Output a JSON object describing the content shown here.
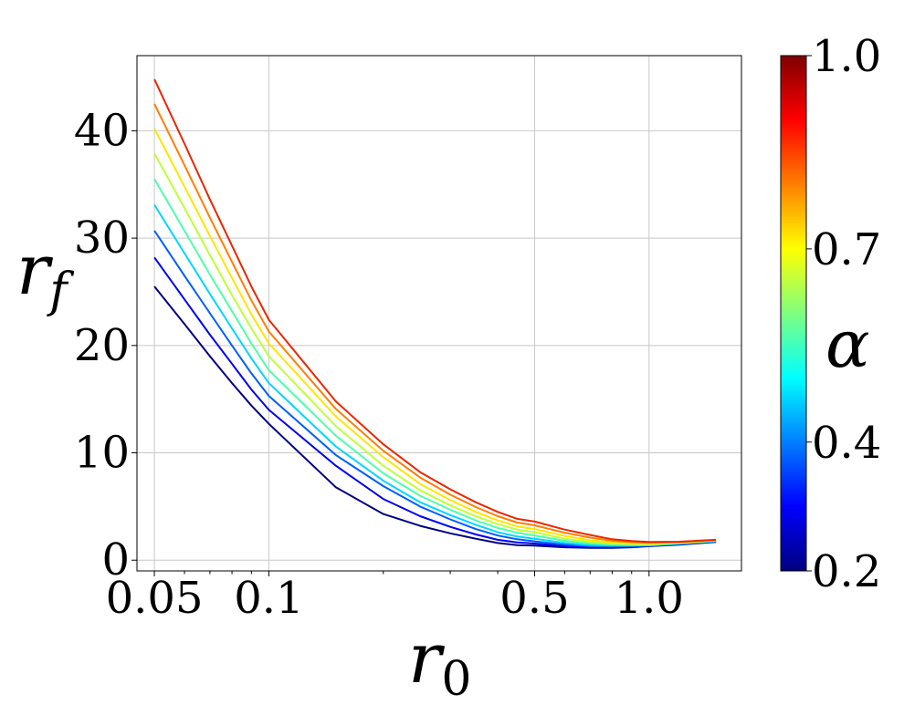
{
  "chart_data": {
    "type": "line",
    "title": "",
    "xlabel_main": "r",
    "xlabel_sub": "0",
    "ylabel_main": "r",
    "ylabel_sub": "f",
    "x_scale": "log",
    "xlim": [
      0.045,
      1.75
    ],
    "ylim": [
      -1,
      47
    ],
    "x_ticks": [
      0.05,
      0.1,
      0.5,
      1.0
    ],
    "x_tick_labels": [
      "0.05",
      "0.1",
      "0.5",
      "1.0"
    ],
    "y_ticks": [
      0,
      10,
      20,
      30,
      40
    ],
    "y_tick_labels": [
      "0",
      "10",
      "20",
      "30",
      "40"
    ],
    "grid": true,
    "x": [
      0.05,
      0.06,
      0.07,
      0.08,
      0.09,
      0.1,
      0.15,
      0.2,
      0.25,
      0.3,
      0.35,
      0.4,
      0.45,
      0.5,
      0.6,
      0.7,
      0.8,
      0.9,
      1.0,
      1.2,
      1.5
    ],
    "series": [
      {
        "alpha": 0.2,
        "color": "#00007f",
        "values": [
          25.5,
          22.0,
          19.0,
          16.5,
          14.4,
          12.7,
          6.8,
          4.3,
          3.2,
          2.5,
          2.0,
          1.6,
          1.4,
          1.35,
          1.2,
          1.15,
          1.15,
          1.2,
          1.3,
          1.45,
          1.7
        ]
      },
      {
        "alpha": 0.3,
        "color": "#0000f1",
        "values": [
          28.2,
          24.3,
          21.0,
          18.3,
          15.9,
          14.0,
          8.8,
          5.7,
          4.1,
          3.1,
          2.4,
          1.9,
          1.65,
          1.55,
          1.3,
          1.2,
          1.2,
          1.25,
          1.32,
          1.48,
          1.72
        ]
      },
      {
        "alpha": 0.4,
        "color": "#005dff",
        "values": [
          30.7,
          26.5,
          23.0,
          20.0,
          17.4,
          15.3,
          9.8,
          6.9,
          5.0,
          3.8,
          2.9,
          2.3,
          1.95,
          1.75,
          1.45,
          1.3,
          1.28,
          1.3,
          1.35,
          1.5,
          1.75
        ]
      },
      {
        "alpha": 0.5,
        "color": "#00d5ff",
        "values": [
          33.1,
          28.6,
          24.8,
          21.6,
          18.8,
          16.5,
          10.6,
          7.4,
          5.4,
          4.2,
          3.3,
          2.6,
          2.2,
          2.0,
          1.6,
          1.4,
          1.35,
          1.35,
          1.38,
          1.55,
          1.78
        ]
      },
      {
        "alpha": 0.6,
        "color": "#4dffaa",
        "values": [
          35.5,
          30.7,
          26.6,
          23.2,
          20.2,
          17.7,
          11.6,
          8.1,
          6.0,
          4.7,
          3.7,
          3.0,
          2.55,
          2.3,
          1.8,
          1.55,
          1.45,
          1.42,
          1.42,
          1.58,
          1.8
        ]
      },
      {
        "alpha": 0.7,
        "color": "#beff39",
        "values": [
          37.9,
          32.8,
          28.4,
          24.7,
          21.6,
          19.0,
          12.5,
          8.8,
          6.5,
          5.1,
          4.1,
          3.35,
          2.85,
          2.6,
          2.0,
          1.7,
          1.55,
          1.5,
          1.48,
          1.62,
          1.82
        ]
      },
      {
        "alpha": 0.8,
        "color": "#ffe500",
        "values": [
          40.2,
          34.8,
          30.2,
          26.3,
          22.9,
          20.2,
          13.4,
          9.6,
          7.1,
          5.6,
          4.5,
          3.7,
          3.15,
          2.9,
          2.25,
          1.85,
          1.65,
          1.58,
          1.55,
          1.65,
          1.85
        ]
      },
      {
        "alpha": 0.9,
        "color": "#ff7e00",
        "values": [
          42.5,
          36.8,
          31.9,
          27.8,
          24.2,
          21.3,
          14.1,
          10.2,
          7.7,
          6.1,
          4.95,
          4.1,
          3.5,
          3.25,
          2.55,
          2.1,
          1.8,
          1.68,
          1.62,
          1.68,
          1.87
        ]
      },
      {
        "alpha": 1.0,
        "color": "#ea2600",
        "values": [
          44.8,
          38.8,
          33.6,
          29.3,
          25.5,
          22.4,
          14.8,
          10.8,
          8.2,
          6.6,
          5.4,
          4.5,
          3.85,
          3.6,
          2.85,
          2.35,
          1.95,
          1.78,
          1.7,
          1.72,
          1.9
        ]
      }
    ],
    "colorbar": {
      "label": "α",
      "range": [
        0.2,
        1.0
      ],
      "ticks": [
        0.2,
        0.4,
        0.7,
        1.0
      ],
      "tick_labels": [
        "0.2",
        "0.4",
        "0.7",
        "1.0"
      ],
      "colormap": "jet",
      "stops": [
        "#00007f",
        "#0000ff",
        "#007fff",
        "#00ffff",
        "#7fff7f",
        "#ffff00",
        "#ff7f00",
        "#ff0000",
        "#7f0000"
      ]
    }
  }
}
